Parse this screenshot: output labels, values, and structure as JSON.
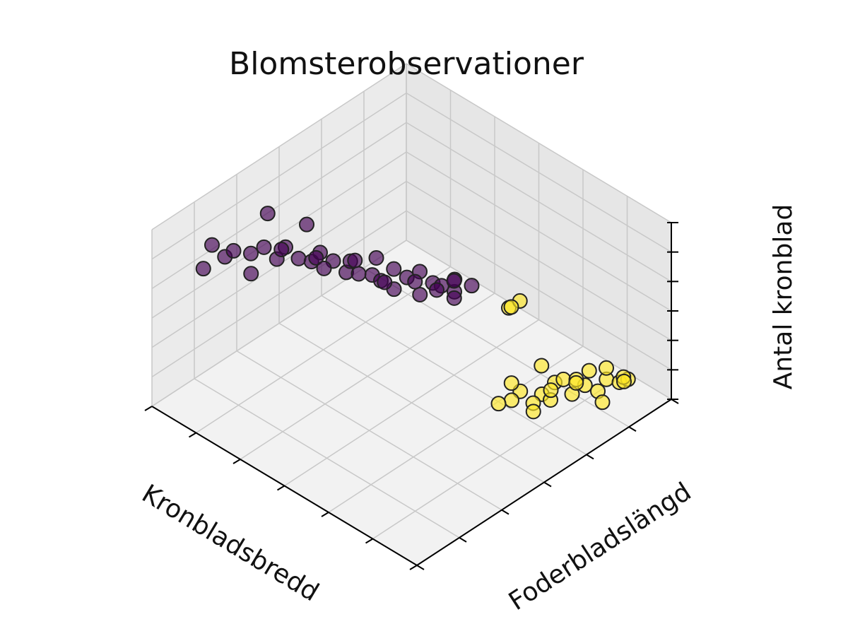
{
  "chart_data": {
    "type": "scatter3d",
    "title": "Blomsterobservationer",
    "xlabel": "Kronbladsbredd",
    "ylabel": "Foderbladslängd",
    "zlabel": "Antal kronblad",
    "xlim": [
      0,
      6
    ],
    "ylim": [
      0,
      6
    ],
    "zlim": [
      0,
      6
    ],
    "xticks": [
      0,
      1,
      2,
      3,
      4,
      5,
      6
    ],
    "yticks": [
      0,
      1,
      2,
      3,
      4,
      5,
      6
    ],
    "zticks": [
      0,
      1,
      2,
      3,
      4,
      5,
      6
    ],
    "grid": true,
    "series": [
      {
        "color": "#440154",
        "x": [
          5.6,
          5.5,
          5.7,
          5.4,
          5.2,
          5.0,
          4.9,
          5.1,
          4.8,
          4.6,
          4.5,
          4.7,
          4.4,
          4.2,
          4.0,
          4.3,
          4.1,
          3.9,
          3.7,
          3.8,
          3.6,
          3.5,
          3.3,
          3.4,
          3.2,
          3.0,
          3.1,
          2.9,
          2.8,
          2.7,
          4.6,
          4.2,
          3.9,
          3.5,
          3.2,
          3.0,
          2.6,
          2.9,
          5.3,
          4.8
        ],
        "y": [
          1.0,
          1.2,
          0.9,
          1.3,
          1.5,
          1.6,
          1.8,
          1.4,
          1.9,
          2.0,
          2.2,
          1.7,
          2.3,
          2.4,
          2.5,
          2.1,
          2.7,
          2.6,
          2.8,
          3.0,
          2.9,
          3.1,
          3.2,
          3.0,
          3.4,
          3.5,
          3.3,
          3.6,
          3.8,
          3.7,
          2.6,
          3.0,
          3.3,
          3.6,
          3.8,
          4.0,
          4.0,
          3.9,
          2.0,
          2.4
        ],
        "z": [
          4.9,
          4.4,
          4.1,
          4.6,
          4.5,
          4.8,
          4.3,
          4.0,
          4.7,
          4.4,
          4.2,
          4.9,
          4.5,
          4.3,
          4.0,
          4.6,
          4.1,
          4.4,
          3.9,
          4.2,
          3.7,
          4.0,
          3.8,
          3.5,
          3.9,
          3.6,
          3.3,
          3.5,
          3.2,
          3.8,
          3.5,
          3.3,
          3.0,
          3.1,
          2.9,
          3.2,
          3.4,
          2.8,
          5.3,
          5.0
        ]
      },
      {
        "color": "#fde725",
        "x": [
          1.5,
          1.3,
          1.2,
          1.0,
          0.9,
          0.8,
          1.1,
          1.4,
          1.6,
          0.7,
          0.6,
          0.9,
          1.2,
          1.0,
          0.8,
          1.3,
          0.5,
          0.7,
          1.1,
          1.5,
          1.8,
          1.7,
          0.6,
          0.4,
          1.0,
          1.76,
          1.7,
          1.8
        ],
        "y": [
          4.0,
          4.3,
          4.5,
          4.7,
          4.9,
          5.1,
          4.6,
          4.2,
          3.9,
          5.2,
          5.4,
          5.0,
          4.4,
          4.8,
          5.3,
          4.1,
          5.5,
          5.6,
          4.9,
          4.5,
          3.8,
          4.0,
          5.0,
          5.3,
          4.2,
          4.0,
          4.2,
          4.1
        ],
        "z": [
          0.8,
          0.6,
          0.9,
          0.5,
          0.7,
          0.4,
          1.0,
          0.3,
          0.5,
          0.8,
          0.6,
          1.1,
          0.4,
          0.9,
          1.0,
          0.2,
          0.7,
          0.5,
          0.6,
          1.2,
          0.3,
          0.9,
          0.3,
          0.9,
          1.1,
          3.4,
          3.5,
          3.3
        ]
      }
    ]
  }
}
